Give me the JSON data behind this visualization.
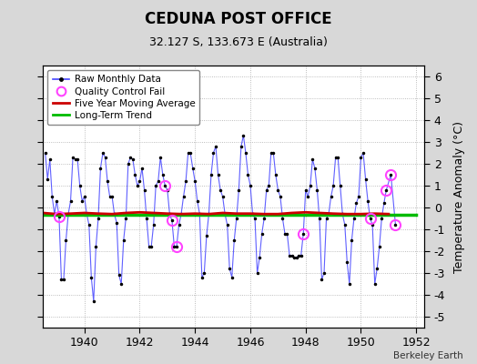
{
  "title": "CEDUNA POST OFFICE",
  "subtitle": "32.127 S, 133.673 E (Australia)",
  "ylabel": "Temperature Anomaly (°C)",
  "credit": "Berkeley Earth",
  "xlim": [
    1938.5,
    1952.3
  ],
  "ylim": [
    -5.5,
    6.5
  ],
  "yticks": [
    -5,
    -4,
    -3,
    -2,
    -1,
    0,
    1,
    2,
    3,
    4,
    5,
    6
  ],
  "xticks": [
    1940,
    1942,
    1944,
    1946,
    1948,
    1950,
    1952
  ],
  "bg_color": "#d8d8d8",
  "plot_bg_color": "#ffffff",
  "raw_color": "#4444ff",
  "moving_avg_color": "#cc0000",
  "trend_color": "#00bb00",
  "qc_fail_color": "#ff44ff",
  "raw_data": [
    [
      1938.583,
      2.5
    ],
    [
      1938.667,
      1.3
    ],
    [
      1938.75,
      2.2
    ],
    [
      1938.833,
      0.5
    ],
    [
      1938.917,
      -0.3
    ],
    [
      1939.0,
      0.3
    ],
    [
      1939.083,
      -0.4
    ],
    [
      1939.167,
      -3.3
    ],
    [
      1939.25,
      -3.3
    ],
    [
      1939.333,
      -1.5
    ],
    [
      1939.417,
      -0.3
    ],
    [
      1939.5,
      0.3
    ],
    [
      1939.583,
      2.3
    ],
    [
      1939.667,
      2.2
    ],
    [
      1939.75,
      2.2
    ],
    [
      1939.833,
      1.0
    ],
    [
      1939.917,
      0.3
    ],
    [
      1940.0,
      0.5
    ],
    [
      1940.083,
      -0.3
    ],
    [
      1940.167,
      -0.8
    ],
    [
      1940.25,
      -3.2
    ],
    [
      1940.333,
      -4.3
    ],
    [
      1940.417,
      -1.8
    ],
    [
      1940.5,
      -0.5
    ],
    [
      1940.583,
      1.8
    ],
    [
      1940.667,
      2.5
    ],
    [
      1940.75,
      2.3
    ],
    [
      1940.833,
      1.2
    ],
    [
      1940.917,
      0.5
    ],
    [
      1941.0,
      0.5
    ],
    [
      1941.083,
      -0.3
    ],
    [
      1941.167,
      -0.7
    ],
    [
      1941.25,
      -3.1
    ],
    [
      1941.333,
      -3.5
    ],
    [
      1941.417,
      -1.5
    ],
    [
      1941.5,
      -0.5
    ],
    [
      1941.583,
      2.0
    ],
    [
      1941.667,
      2.3
    ],
    [
      1941.75,
      2.2
    ],
    [
      1941.833,
      1.5
    ],
    [
      1941.917,
      1.0
    ],
    [
      1942.0,
      1.2
    ],
    [
      1942.083,
      1.8
    ],
    [
      1942.167,
      0.8
    ],
    [
      1942.25,
      -0.5
    ],
    [
      1942.333,
      -1.8
    ],
    [
      1942.417,
      -1.8
    ],
    [
      1942.5,
      -0.8
    ],
    [
      1942.583,
      1.0
    ],
    [
      1942.667,
      1.2
    ],
    [
      1942.75,
      2.3
    ],
    [
      1942.833,
      1.5
    ],
    [
      1942.917,
      1.0
    ],
    [
      1943.0,
      0.8
    ],
    [
      1943.083,
      -0.3
    ],
    [
      1943.167,
      -0.6
    ],
    [
      1943.25,
      -1.8
    ],
    [
      1943.333,
      -1.8
    ],
    [
      1943.417,
      -0.8
    ],
    [
      1943.5,
      -0.3
    ],
    [
      1943.583,
      0.5
    ],
    [
      1943.667,
      1.2
    ],
    [
      1943.75,
      2.5
    ],
    [
      1943.833,
      2.5
    ],
    [
      1943.917,
      1.8
    ],
    [
      1944.0,
      1.2
    ],
    [
      1944.083,
      0.3
    ],
    [
      1944.167,
      -0.3
    ],
    [
      1944.25,
      -3.2
    ],
    [
      1944.333,
      -3.0
    ],
    [
      1944.417,
      -1.3
    ],
    [
      1944.5,
      -0.3
    ],
    [
      1944.583,
      1.5
    ],
    [
      1944.667,
      2.5
    ],
    [
      1944.75,
      2.8
    ],
    [
      1944.833,
      1.5
    ],
    [
      1944.917,
      0.8
    ],
    [
      1945.0,
      0.5
    ],
    [
      1945.083,
      -0.3
    ],
    [
      1945.167,
      -0.8
    ],
    [
      1945.25,
      -2.8
    ],
    [
      1945.333,
      -3.2
    ],
    [
      1945.417,
      -1.5
    ],
    [
      1945.5,
      -0.5
    ],
    [
      1945.583,
      0.8
    ],
    [
      1945.667,
      2.8
    ],
    [
      1945.75,
      3.3
    ],
    [
      1945.833,
      2.5
    ],
    [
      1945.917,
      1.5
    ],
    [
      1946.0,
      1.0
    ],
    [
      1946.083,
      -0.3
    ],
    [
      1946.167,
      -0.5
    ],
    [
      1946.25,
      -3.0
    ],
    [
      1946.333,
      -2.3
    ],
    [
      1946.417,
      -1.2
    ],
    [
      1946.5,
      -0.5
    ],
    [
      1946.583,
      0.8
    ],
    [
      1946.667,
      1.0
    ],
    [
      1946.75,
      2.5
    ],
    [
      1946.833,
      2.5
    ],
    [
      1946.917,
      1.5
    ],
    [
      1947.0,
      0.8
    ],
    [
      1947.083,
      0.5
    ],
    [
      1947.167,
      -0.5
    ],
    [
      1947.25,
      -1.2
    ],
    [
      1947.333,
      -1.2
    ],
    [
      1947.417,
      -2.2
    ],
    [
      1947.5,
      -2.2
    ],
    [
      1947.583,
      -2.3
    ],
    [
      1947.667,
      -2.3
    ],
    [
      1947.75,
      -2.2
    ],
    [
      1947.833,
      -2.2
    ],
    [
      1947.917,
      -1.2
    ],
    [
      1948.0,
      0.8
    ],
    [
      1948.083,
      0.5
    ],
    [
      1948.167,
      1.0
    ],
    [
      1948.25,
      2.2
    ],
    [
      1948.333,
      1.8
    ],
    [
      1948.417,
      0.8
    ],
    [
      1948.5,
      -0.5
    ],
    [
      1948.583,
      -3.3
    ],
    [
      1948.667,
      -3.0
    ],
    [
      1948.75,
      -0.5
    ],
    [
      1948.833,
      -0.3
    ],
    [
      1948.917,
      0.5
    ],
    [
      1949.0,
      1.0
    ],
    [
      1949.083,
      2.3
    ],
    [
      1949.167,
      2.3
    ],
    [
      1949.25,
      1.0
    ],
    [
      1949.333,
      -0.3
    ],
    [
      1949.417,
      -0.8
    ],
    [
      1949.5,
      -2.5
    ],
    [
      1949.583,
      -3.5
    ],
    [
      1949.667,
      -1.5
    ],
    [
      1949.75,
      -0.5
    ],
    [
      1949.833,
      0.2
    ],
    [
      1949.917,
      0.5
    ],
    [
      1950.0,
      2.3
    ],
    [
      1950.083,
      2.5
    ],
    [
      1950.167,
      1.3
    ],
    [
      1950.25,
      0.3
    ],
    [
      1950.333,
      -0.5
    ],
    [
      1950.417,
      -0.8
    ],
    [
      1950.5,
      -3.5
    ],
    [
      1950.583,
      -2.8
    ],
    [
      1950.667,
      -1.8
    ],
    [
      1950.75,
      -0.5
    ],
    [
      1950.833,
      0.2
    ],
    [
      1950.917,
      0.8
    ],
    [
      1951.083,
      1.5
    ],
    [
      1951.25,
      -0.8
    ]
  ],
  "qc_fail_points": [
    [
      1939.083,
      -0.4
    ],
    [
      1942.917,
      1.0
    ],
    [
      1943.167,
      -0.6
    ],
    [
      1943.333,
      -1.8
    ],
    [
      1947.917,
      -1.2
    ],
    [
      1950.333,
      -0.5
    ],
    [
      1950.917,
      0.8
    ],
    [
      1951.083,
      1.5
    ],
    [
      1951.25,
      -0.8
    ]
  ],
  "moving_avg_x": [
    1938.5,
    1939.0,
    1939.5,
    1940.0,
    1940.5,
    1941.0,
    1941.5,
    1942.0,
    1942.5,
    1943.0,
    1943.5,
    1944.0,
    1944.5,
    1945.0,
    1945.5,
    1946.0,
    1946.5,
    1947.0,
    1947.5,
    1948.0,
    1948.5,
    1949.0,
    1949.5,
    1950.0,
    1950.5,
    1951.0
  ],
  "moving_avg_y": [
    -0.25,
    -0.3,
    -0.28,
    -0.25,
    -0.28,
    -0.3,
    -0.25,
    -0.22,
    -0.25,
    -0.28,
    -0.3,
    -0.28,
    -0.3,
    -0.25,
    -0.28,
    -0.28,
    -0.3,
    -0.3,
    -0.25,
    -0.22,
    -0.25,
    -0.28,
    -0.3,
    -0.3,
    -0.28,
    -0.3
  ],
  "trend_x": [
    1938.5,
    1952.0
  ],
  "trend_y": [
    -0.32,
    -0.32
  ]
}
